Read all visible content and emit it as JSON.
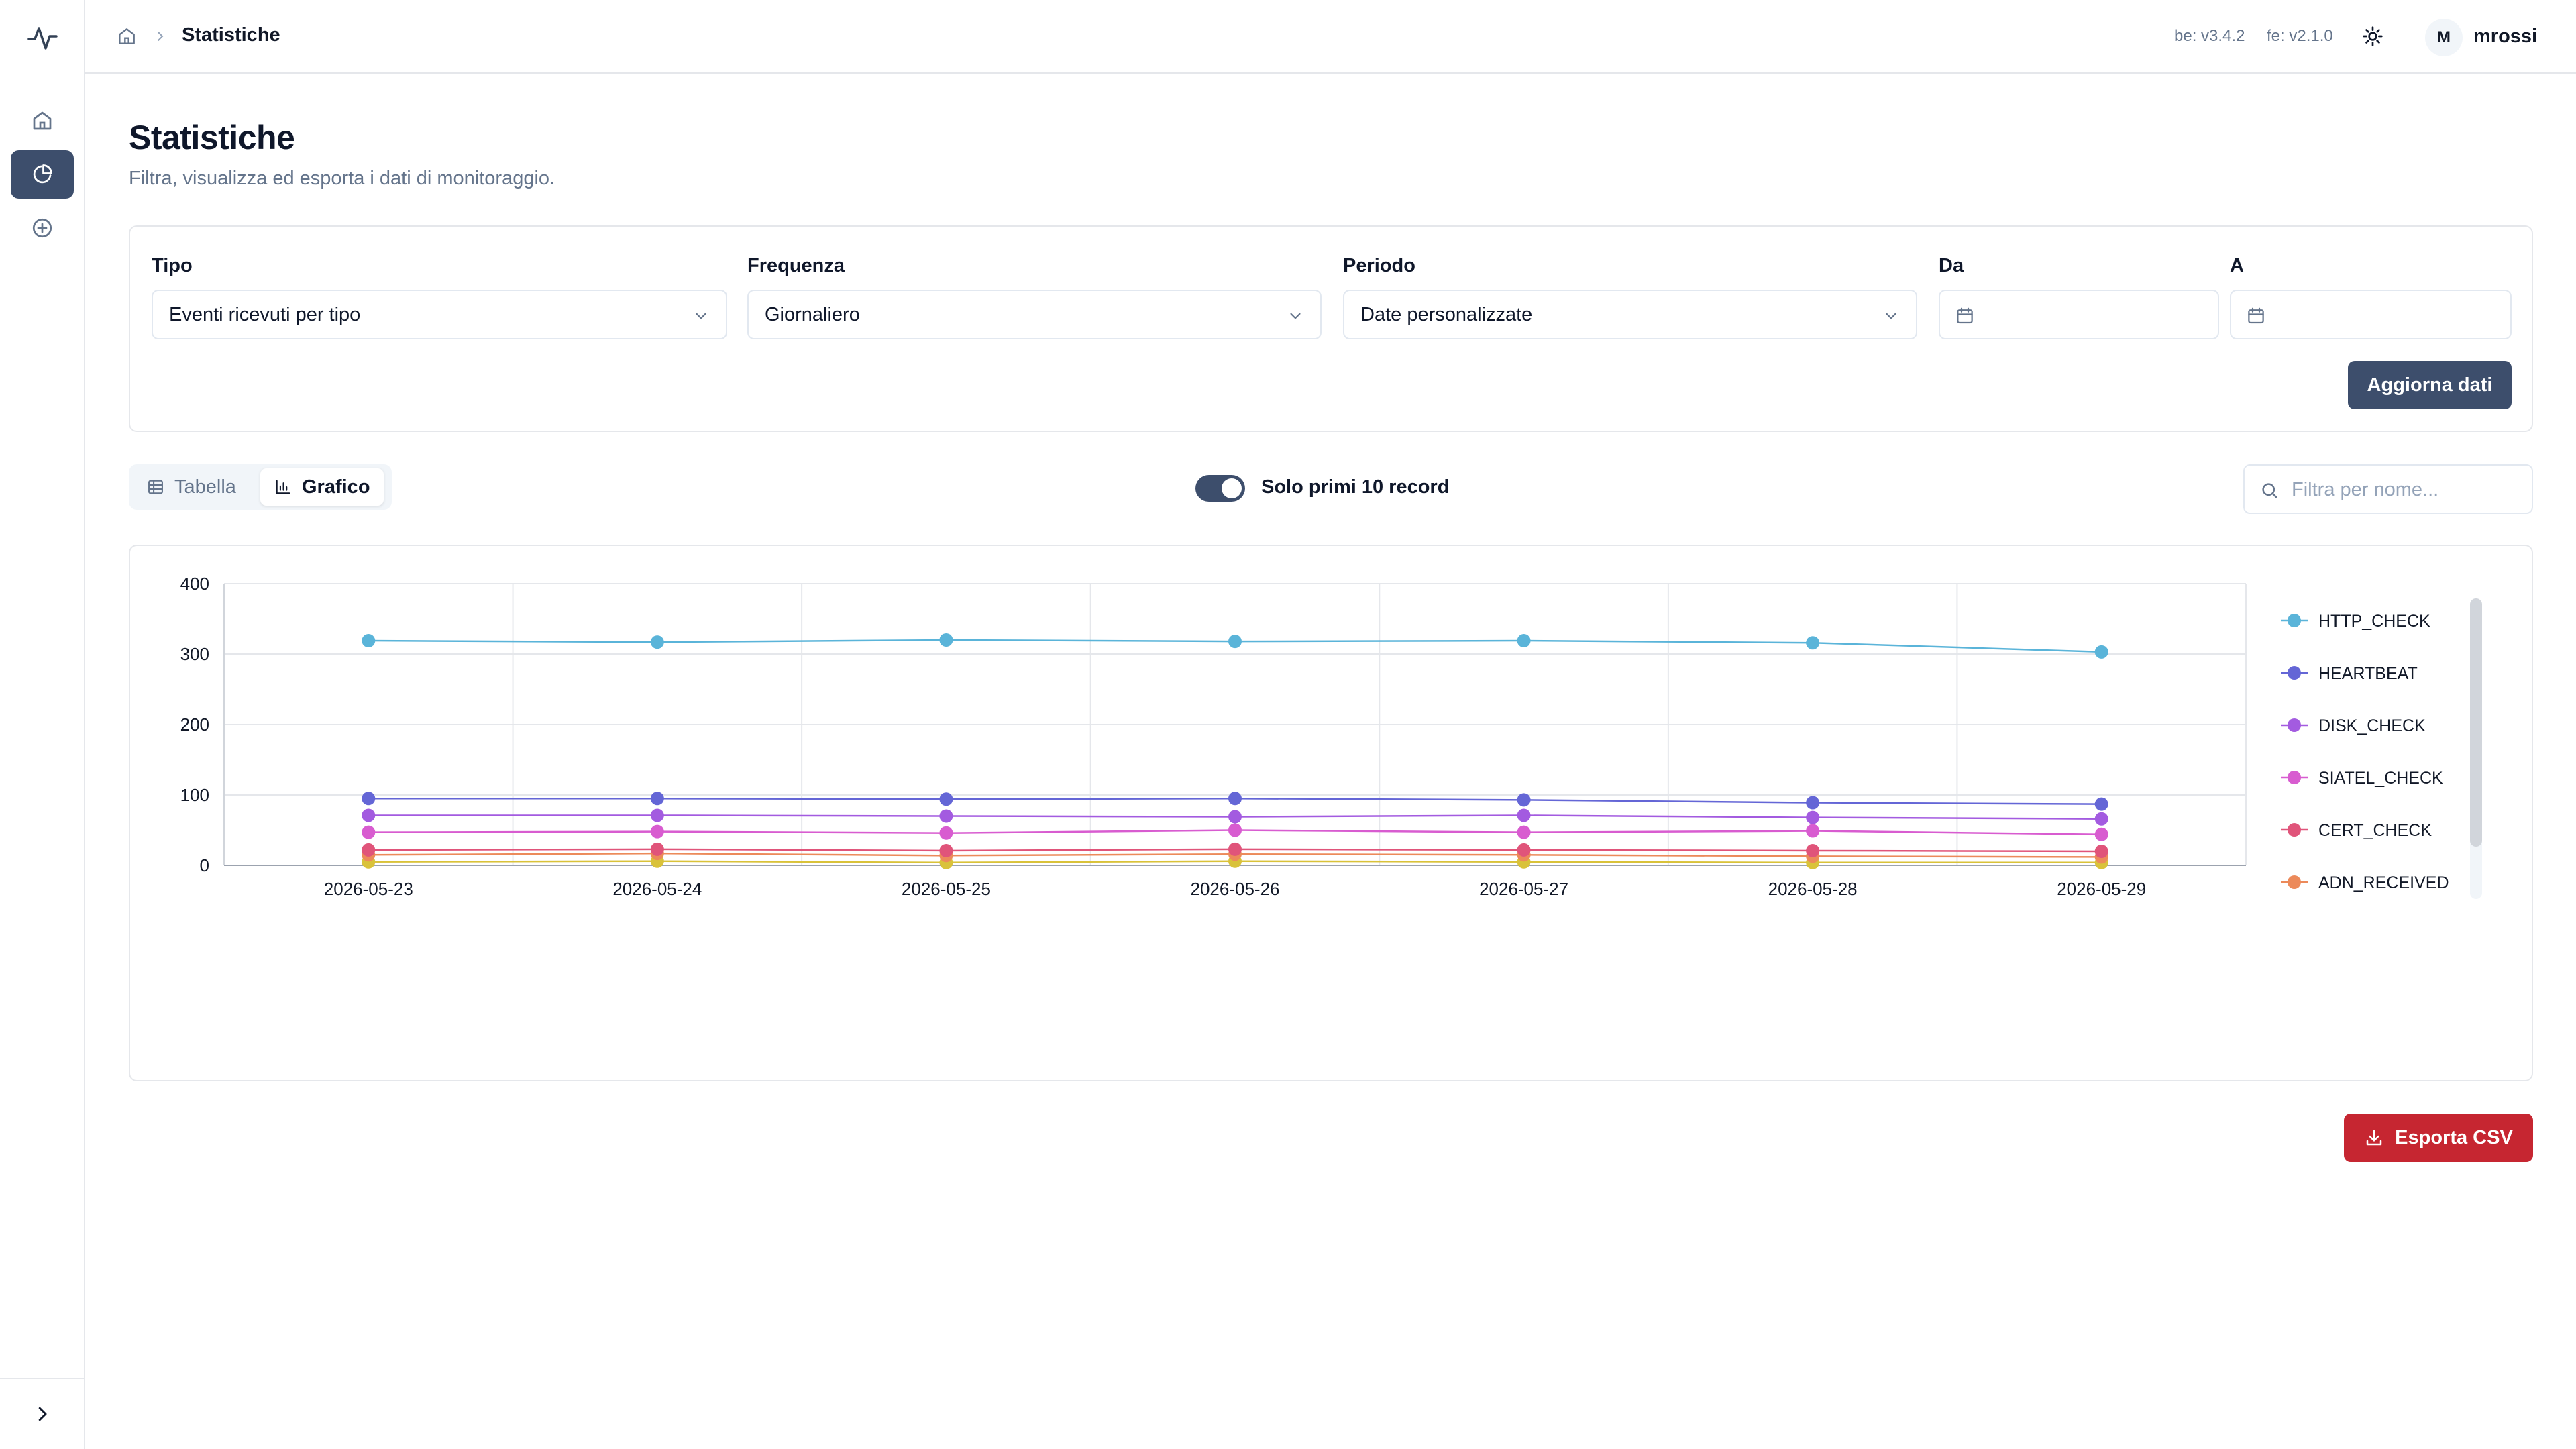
{
  "topbar": {
    "breadcrumb_current": "Statistiche",
    "backend_version": "be: v3.4.2",
    "frontend_version": "fe: v2.1.0",
    "avatar_initial": "M",
    "username": "mrossi"
  },
  "sidebar": {
    "items": [
      {
        "icon": "home-icon",
        "active": false
      },
      {
        "icon": "pie-chart-icon",
        "active": true
      },
      {
        "icon": "plus-circle-icon",
        "active": false
      }
    ]
  },
  "page": {
    "title": "Statistiche",
    "subtitle": "Filtra, visualizza ed esporta i dati di monitoraggio."
  },
  "filters": {
    "tipo_label": "Tipo",
    "tipo_value": "Eventi ricevuti per tipo",
    "frequenza_label": "Frequenza",
    "frequenza_value": "Giornaliero",
    "periodo_label": "Periodo",
    "periodo_value": "Date personalizzate",
    "da_label": "Da",
    "da_value": "",
    "a_label": "A",
    "a_value": "",
    "refresh_button": "Aggiorna dati"
  },
  "view": {
    "table_label": "Tabella",
    "chart_label": "Grafico",
    "active": "Grafico",
    "toggle_label": "Solo primi 10 record",
    "toggle_on": true,
    "search_placeholder": "Filtra per nome..."
  },
  "export_button": "Esporta CSV",
  "colors": {
    "primary": "#3d4e6c",
    "danger": "#c62631"
  },
  "chart_data": {
    "type": "line",
    "x": [
      "2026-05-23",
      "2026-05-24",
      "2026-05-25",
      "2026-05-26",
      "2026-05-27",
      "2026-05-28",
      "2026-05-29"
    ],
    "ylim": [
      0,
      400
    ],
    "yticks": [
      0,
      100,
      200,
      300,
      400
    ],
    "grid": true,
    "legend_position": "right",
    "series": [
      {
        "name": "HTTP_CHECK",
        "color": "#5ab4d9",
        "values": [
          319,
          317,
          320,
          318,
          319,
          316,
          303
        ]
      },
      {
        "name": "HEARTBEAT",
        "color": "#6466d6",
        "values": [
          95,
          95,
          94,
          95,
          93,
          89,
          87
        ]
      },
      {
        "name": "DISK_CHECK",
        "color": "#a35be0",
        "values": [
          71,
          71,
          70,
          69,
          71,
          68,
          66
        ]
      },
      {
        "name": "SIATEL_CHECK",
        "color": "#d85cd0",
        "values": [
          47,
          48,
          46,
          50,
          47,
          49,
          44
        ]
      },
      {
        "name": "CERT_CHECK",
        "color": "#e0547a",
        "values": [
          22,
          23,
          21,
          23,
          22,
          21,
          20
        ]
      },
      {
        "name": "ADN_RECEIVED",
        "color": "#ec8a5a",
        "values": [
          15,
          17,
          14,
          16,
          15,
          13,
          12
        ]
      },
      {
        "name": "",
        "color": "#d9c23a",
        "values": [
          5,
          6,
          4,
          6,
          5,
          4,
          4
        ]
      }
    ]
  }
}
